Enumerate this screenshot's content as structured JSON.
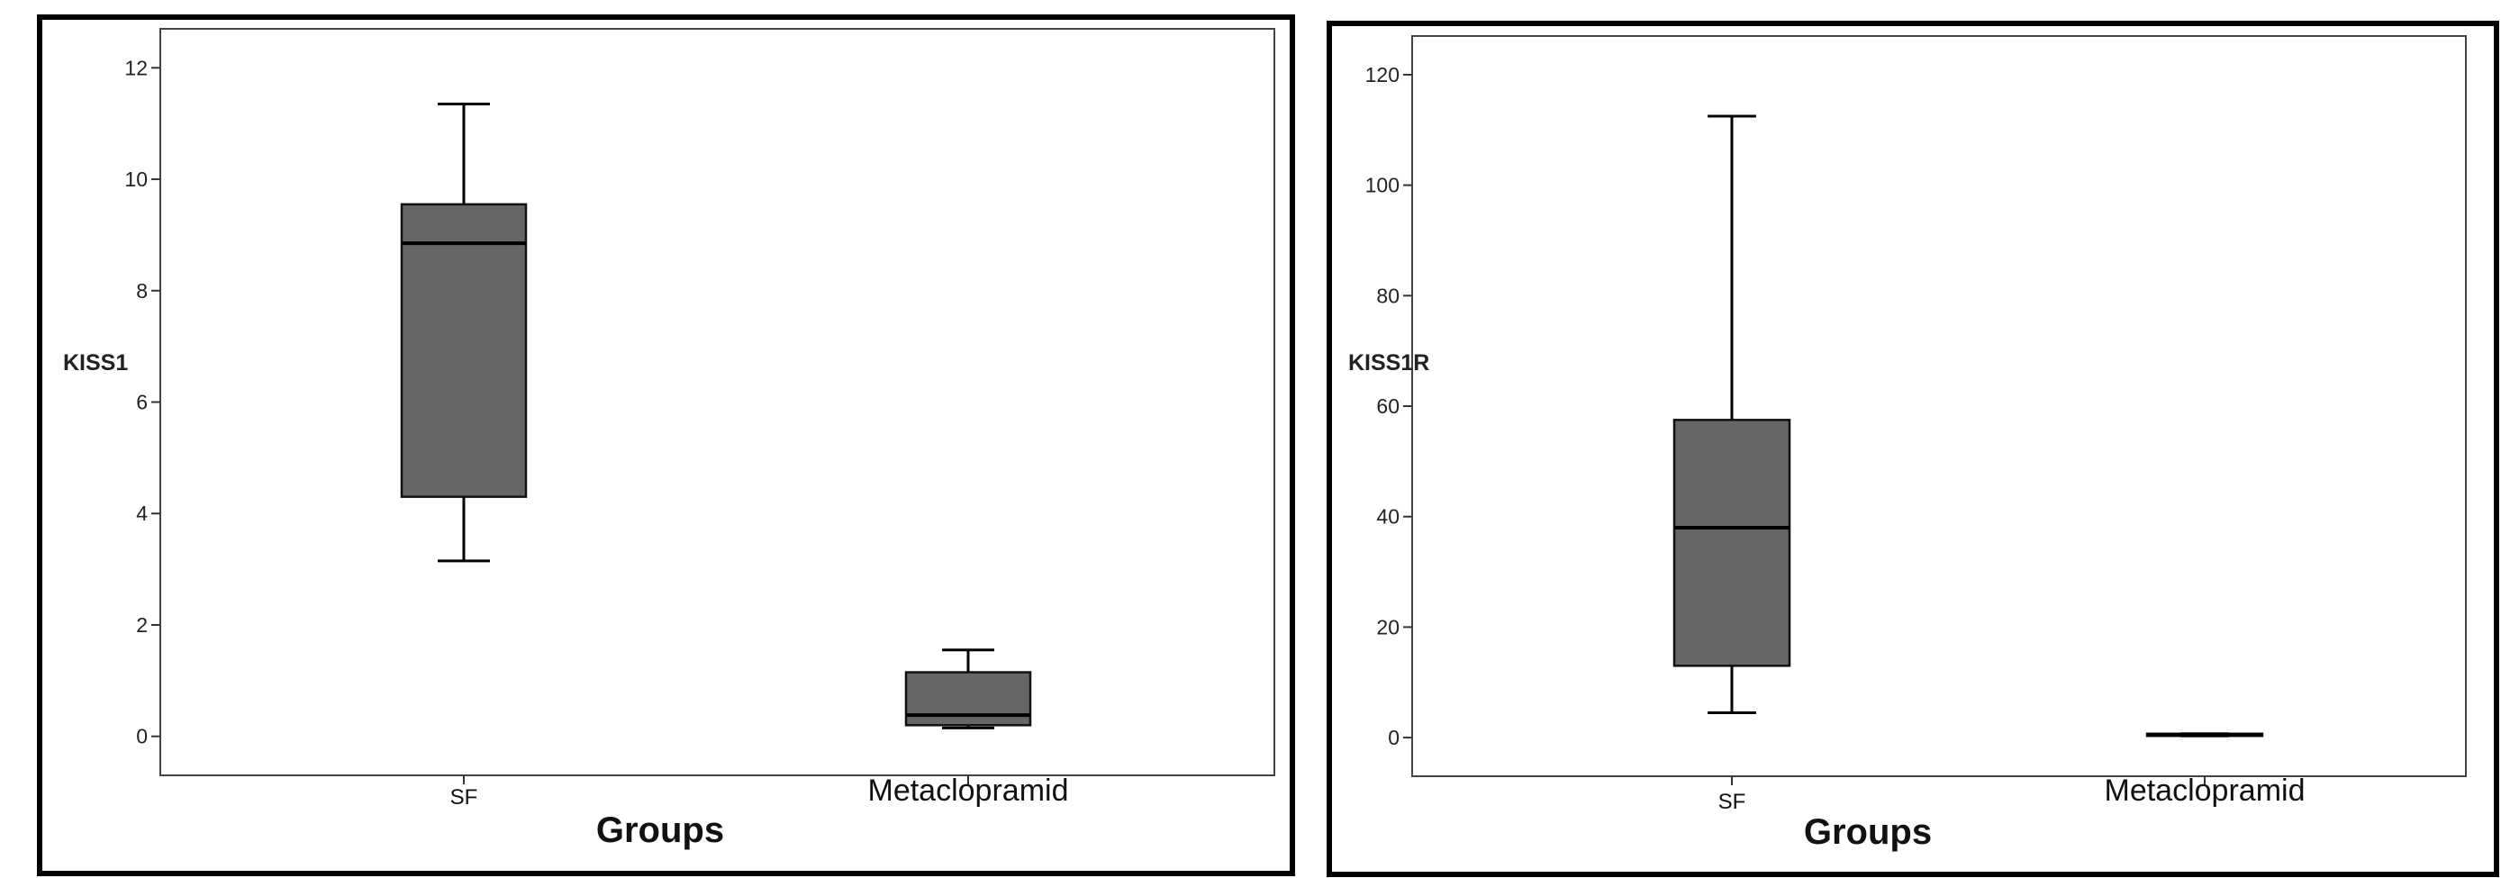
{
  "chart_data": [
    {
      "type": "box",
      "ylabel": "KISS1",
      "xlabel": "Groups",
      "ylim": [
        -0.7,
        12.7
      ],
      "yticks": [
        "0",
        "2",
        "4",
        "6",
        "8",
        "10",
        "12"
      ],
      "categories": [
        "SF",
        "Metaclopramid"
      ],
      "boxes": [
        {
          "category": "SF",
          "min": 3.15,
          "q1": 4.3,
          "median": 8.85,
          "q3": 9.55,
          "max": 11.35
        },
        {
          "category": "Metaclopramid",
          "min": 0.15,
          "q1": 0.2,
          "median": 0.38,
          "q3": 1.15,
          "max": 1.55
        }
      ],
      "grid": false,
      "fill_color": "#666666"
    },
    {
      "type": "box",
      "ylabel": "KISS1R",
      "xlabel": "Groups",
      "ylim": [
        -7,
        127
      ],
      "yticks": [
        "0",
        "20",
        "40",
        "60",
        "80",
        "100",
        "120"
      ],
      "categories": [
        "SF",
        "Metaclopramid"
      ],
      "boxes": [
        {
          "category": "SF",
          "min": 4.5,
          "q1": 13,
          "median": 38,
          "q3": 57.5,
          "max": 112.5
        },
        {
          "category": "Metaclopramid",
          "min": 0.3,
          "q1": 0.3,
          "median": 0.5,
          "q3": 0.7,
          "max": 0.7
        }
      ],
      "grid": false,
      "fill_color": "#666666"
    }
  ]
}
